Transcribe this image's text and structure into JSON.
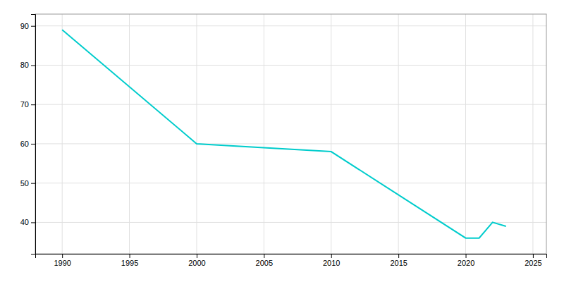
{
  "chart_data": {
    "type": "line",
    "x": [
      1990,
      2000,
      2010,
      2020,
      2021,
      2022,
      2023
    ],
    "values": [
      89,
      60,
      58,
      36,
      36,
      40,
      39
    ],
    "color": "#00CCCC",
    "xlim": [
      1988,
      2026
    ],
    "ylim": [
      32,
      93
    ],
    "xticks": [
      1990,
      1995,
      2000,
      2005,
      2010,
      2015,
      2020,
      2025
    ],
    "yticks": [
      40,
      50,
      60,
      70,
      80,
      90
    ],
    "grid": true
  }
}
